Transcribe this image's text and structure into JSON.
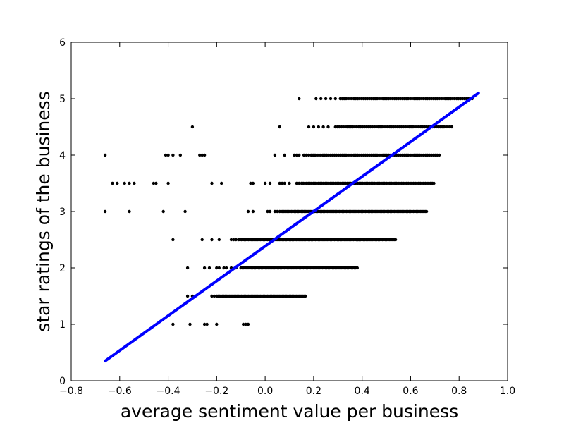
{
  "chart_data": {
    "type": "scatter",
    "xlabel": "average sentiment value per business",
    "ylabel": "star ratings of the business",
    "xlim": [
      -0.8,
      1.0
    ],
    "ylim": [
      0,
      6
    ],
    "x_ticks": [
      "−0.8",
      "−0.6",
      "−0.4",
      "−0.2",
      "0.0",
      "0.2",
      "0.4",
      "0.6",
      "0.8",
      "1.0"
    ],
    "y_ticks": [
      "0",
      "1",
      "2",
      "3",
      "4",
      "5",
      "6"
    ],
    "grid": false,
    "legend": "none",
    "colors": {
      "points": "#000000",
      "fit_line": "#0000ff"
    },
    "fit_line": {
      "x": [
        -0.66,
        0.88
      ],
      "y": [
        0.35,
        5.1
      ]
    },
    "series": [
      {
        "kind": "points",
        "rows": [
          {
            "y": 5.0,
            "x": [
              0.14,
              0.21,
              0.23,
              0.25,
              0.27,
              0.29
            ],
            "band": [
              0.31,
              0.86,
              0.008
            ]
          },
          {
            "y": 4.5,
            "x": [
              -0.3,
              0.06,
              0.18,
              0.2,
              0.22,
              0.24,
              0.26
            ],
            "band": [
              0.29,
              0.77,
              0.008
            ]
          },
          {
            "y": 4.0,
            "x": [
              -0.66,
              -0.41,
              -0.4,
              -0.38,
              -0.35,
              -0.27,
              -0.26,
              -0.25,
              0.04,
              0.08,
              0.12,
              0.13,
              0.14,
              0.16,
              0.17,
              0.18
            ],
            "band": [
              0.19,
              0.72,
              0.008
            ]
          },
          {
            "y": 3.5,
            "x": [
              -0.63,
              -0.61,
              -0.58,
              -0.56,
              -0.54,
              -0.46,
              -0.45,
              -0.4,
              -0.22,
              -0.18,
              -0.06,
              -0.05,
              0.0,
              0.02,
              0.06,
              0.07,
              0.08,
              0.1,
              0.13,
              0.14
            ],
            "band": [
              0.15,
              0.7,
              0.007
            ]
          },
          {
            "y": 3.0,
            "x": [
              -0.66,
              -0.56,
              -0.42,
              -0.33,
              -0.07,
              -0.05,
              0.01,
              0.02,
              0.04,
              0.05
            ],
            "band": [
              0.06,
              0.67,
              0.006
            ]
          },
          {
            "y": 2.5,
            "x": [
              -0.38,
              -0.26,
              -0.22,
              -0.19,
              -0.14,
              -0.13,
              -0.12
            ],
            "band": [
              -0.11,
              0.54,
              0.006
            ]
          },
          {
            "y": 2.0,
            "x": [
              -0.32,
              -0.25,
              -0.23,
              -0.2,
              -0.19,
              -0.17,
              -0.16,
              -0.14,
              -0.12
            ],
            "band": [
              -0.1,
              0.38,
              0.006
            ]
          },
          {
            "y": 1.5,
            "x": [
              -0.32,
              -0.3,
              -0.22,
              -0.21
            ],
            "band": [
              -0.2,
              0.17,
              0.006
            ]
          },
          {
            "y": 1.0,
            "x": [
              -0.38,
              -0.31,
              -0.25,
              -0.24,
              -0.2,
              -0.09,
              -0.08,
              -0.07
            ]
          }
        ]
      }
    ]
  }
}
